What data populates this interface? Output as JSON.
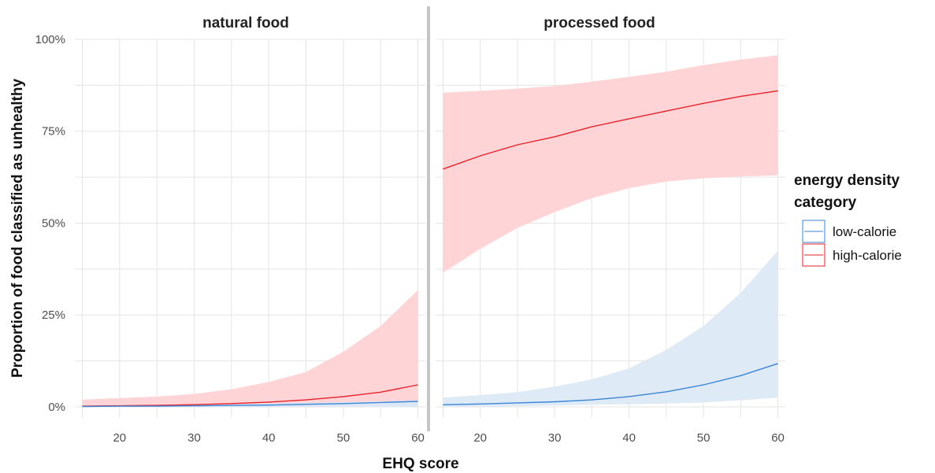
{
  "chart_data": {
    "type": "line",
    "facets": [
      "natural food",
      "processed food"
    ],
    "xlabel": "EHQ score",
    "ylabel": "Proportion of food classified as unhealthy",
    "xlim": [
      14,
      61
    ],
    "ylim": [
      -0.03,
      1.0
    ],
    "x_ticks": [
      20,
      30,
      40,
      50,
      60
    ],
    "y_ticks": [
      0,
      0.25,
      0.5,
      0.75,
      1.0
    ],
    "y_tick_labels": [
      "0%",
      "25%",
      "50%",
      "75%",
      "100%"
    ],
    "grid": true,
    "legend": {
      "title_line1": "energy density",
      "title_line2": "category",
      "position": "right",
      "entries": [
        "low-calorie",
        "high-calorie"
      ]
    },
    "colors": {
      "low-calorie": "#3a85d6",
      "high-calorie": "#e8202a",
      "low-calorie-ribbon": "#dce9f5",
      "high-calorie-ribbon": "#ffd2d4",
      "grid": "#e5e5e5",
      "facet-divider": "#c6c6c6"
    },
    "x": [
      15,
      20,
      25,
      30,
      35,
      40,
      45,
      50,
      55,
      60
    ],
    "panels": [
      {
        "facet": "natural food",
        "series": [
          {
            "name": "high-calorie",
            "values": [
              0.002,
              0.003,
              0.004,
              0.006,
              0.009,
              0.013,
              0.019,
              0.028,
              0.04,
              0.06
            ],
            "lower": [
              0.0,
              0.0,
              0.0,
              0.0,
              0.0,
              0.0,
              0.001,
              0.002,
              0.004,
              0.006
            ],
            "upper": [
              0.02,
              0.024,
              0.028,
              0.035,
              0.048,
              0.068,
              0.095,
              0.15,
              0.22,
              0.318
            ]
          },
          {
            "name": "low-calorie",
            "values": [
              0.001,
              0.002,
              0.002,
              0.003,
              0.004,
              0.005,
              0.007,
              0.009,
              0.012,
              0.015
            ],
            "lower": [
              0.0,
              0.0,
              0.0,
              0.0,
              0.0,
              0.0,
              0.0,
              0.0,
              0.0,
              0.0
            ],
            "upper": [
              0.003,
              0.004,
              0.005,
              0.006,
              0.007,
              0.009,
              0.011,
              0.013,
              0.015,
              0.018
            ]
          }
        ]
      },
      {
        "facet": "processed food",
        "series": [
          {
            "name": "high-calorie",
            "values": [
              0.647,
              0.683,
              0.713,
              0.735,
              0.762,
              0.784,
              0.805,
              0.826,
              0.845,
              0.86
            ],
            "lower": [
              0.365,
              0.43,
              0.487,
              0.53,
              0.568,
              0.595,
              0.613,
              0.622,
              0.627,
              0.63
            ],
            "upper": [
              0.855,
              0.86,
              0.866,
              0.873,
              0.885,
              0.898,
              0.912,
              0.93,
              0.945,
              0.957
            ]
          },
          {
            "name": "low-calorie",
            "values": [
              0.006,
              0.008,
              0.011,
              0.014,
              0.019,
              0.028,
              0.041,
              0.06,
              0.085,
              0.118
            ],
            "lower": [
              0.0,
              0.0,
              0.002,
              0.004,
              0.006,
              0.007,
              0.009,
              0.012,
              0.018,
              0.025
            ],
            "upper": [
              0.025,
              0.032,
              0.04,
              0.055,
              0.075,
              0.105,
              0.155,
              0.22,
              0.31,
              0.425
            ]
          }
        ]
      }
    ]
  }
}
